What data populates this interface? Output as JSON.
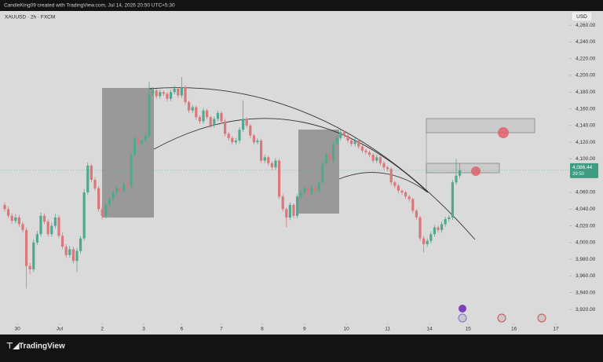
{
  "header": "CandleKing09 created with TradingView.com, Jul 14, 2026 20:50 UTC+5:30",
  "logo": "TradingView",
  "chart_data": {
    "type": "candlestick",
    "symbol": "XAUUSD · 2h · FXCM",
    "currency": "USD",
    "up_color": "#52a88f",
    "down_color": "#d9777a",
    "grid": false,
    "ylim": [
      3905,
      4277
    ],
    "yticks": [
      {
        "value": 4260,
        "label": "4,260.00"
      },
      {
        "value": 4240,
        "label": "4,240.00"
      },
      {
        "value": 4220,
        "label": "4,220.00"
      },
      {
        "value": 4200,
        "label": "4,200.00"
      },
      {
        "value": 4180,
        "label": "4,180.00"
      },
      {
        "value": 4160,
        "label": "4,160.00"
      },
      {
        "value": 4140,
        "label": "4,140.00"
      },
      {
        "value": 4120,
        "label": "4,120.00"
      },
      {
        "value": 4100,
        "label": "4,100.00"
      },
      {
        "value": 4080,
        "label": "4,080.00"
      },
      {
        "value": 4060,
        "label": "4,060.00"
      },
      {
        "value": 4040,
        "label": "4,040.00"
      },
      {
        "value": 4020,
        "label": "4,020.00"
      },
      {
        "value": 4000,
        "label": "4,000.00"
      },
      {
        "value": 3980,
        "label": "3,980.00"
      },
      {
        "value": 3960,
        "label": "3,960.00"
      },
      {
        "value": 3940,
        "label": "3,940.00"
      },
      {
        "value": 3920,
        "label": "3,920.00"
      }
    ],
    "xlim": [
      -1.3,
      156.3
    ],
    "xticks": [
      {
        "value": 3.5,
        "label": "30"
      },
      {
        "value": 15.2,
        "label": "Jul"
      },
      {
        "value": 27,
        "label": "2"
      },
      {
        "value": 38.5,
        "label": "3"
      },
      {
        "value": 49,
        "label": "6"
      },
      {
        "value": 60,
        "label": "7"
      },
      {
        "value": 71.3,
        "label": "8"
      },
      {
        "value": 83,
        "label": "9"
      },
      {
        "value": 94.6,
        "label": "10"
      },
      {
        "value": 106,
        "label": "11"
      },
      {
        "value": 117.6,
        "label": "14"
      },
      {
        "value": 128.3,
        "label": "15"
      },
      {
        "value": 141,
        "label": "16"
      },
      {
        "value": 152.6,
        "label": "17"
      }
    ],
    "last_price": {
      "value": 4086.44,
      "label": "4,086.44"
    },
    "countdown": "39:50",
    "open": [
      4045,
      4040,
      4032,
      4026,
      4030,
      4022,
      4015,
      3972,
      3968,
      4000,
      4010,
      4032,
      4025,
      4010,
      4020,
      4030,
      4008,
      3995,
      3985,
      3992,
      3978,
      3990,
      4005,
      4060,
      4092,
      4075,
      4065,
      4040,
      4032,
      4045,
      4052,
      4060,
      4065,
      4062,
      4070,
      4068,
      4105,
      4125,
      4118,
      4122,
      4128,
      4178,
      4182,
      4175,
      4180,
      4178,
      4172,
      4180,
      4184,
      4176,
      4186,
      4168,
      4158,
      4162,
      4150,
      4145,
      4158,
      4150,
      4140,
      4148,
      4155,
      4145,
      4130,
      4125,
      4120,
      4122,
      4135,
      4148,
      4140,
      4128,
      4120,
      4122,
      4098,
      4102,
      4095,
      4090,
      4098,
      4055,
      4040,
      4030,
      4045,
      4032,
      4055,
      4060,
      4065,
      4058,
      4066,
      4062,
      4072,
      4095,
      4105,
      4098,
      4118,
      4125,
      4132,
      4128,
      4122,
      4118,
      4122,
      4115,
      4110,
      4108,
      4105,
      4098,
      4102,
      4095,
      4090,
      4088,
      4072,
      4068,
      4062,
      4060,
      4055,
      4052,
      4038,
      4030,
      4005,
      3998,
      4002,
      4010,
      4018,
      4015,
      4022,
      4028,
      4030,
      4072,
      4080
    ],
    "high": [
      4048,
      4043,
      4035,
      4034,
      4033,
      4025,
      4018,
      3976,
      4004,
      4014,
      4036,
      4035,
      4028,
      4024,
      4034,
      4033,
      4012,
      3998,
      3996,
      3995,
      3994,
      4008,
      4064,
      4096,
      4094,
      4078,
      4068,
      4044,
      4048,
      4055,
      4063,
      4068,
      4067,
      4073,
      4072,
      4108,
      4128,
      4127,
      4125,
      4132,
      4192,
      4186,
      4184,
      4183,
      4182,
      4180,
      4183,
      4188,
      4186,
      4198,
      4188,
      4170,
      4165,
      4164,
      4152,
      4161,
      4160,
      4152,
      4151,
      4158,
      4157,
      4148,
      4132,
      4127,
      4125,
      4138,
      4170,
      4150,
      4142,
      4130,
      4125,
      4124,
      4105,
      4104,
      4097,
      4101,
      4100,
      4058,
      4042,
      4048,
      4047,
      4058,
      4063,
      4068,
      4067,
      4069,
      4068,
      4075,
      4098,
      4108,
      4107,
      4121,
      4128,
      4135,
      4134,
      4130,
      4124,
      4125,
      4124,
      4117,
      4112,
      4110,
      4107,
      4105,
      4104,
      4097,
      4092,
      4090,
      4074,
      4070,
      4064,
      4062,
      4057,
      4054,
      4040,
      4032,
      4008,
      4005,
      4013,
      4021,
      4020,
      4025,
      4031,
      4033,
      4075,
      4100,
      4095
    ],
    "low": [
      4037,
      4029,
      4023,
      4023,
      4019,
      4012,
      3945,
      3962,
      3965,
      3997,
      4007,
      4022,
      4007,
      4007,
      4017,
      4005,
      3992,
      3982,
      3982,
      3975,
      3965,
      3987,
      4002,
      4057,
      4072,
      4062,
      4037,
      4028,
      4029,
      4042,
      4049,
      4057,
      4059,
      4059,
      4065,
      4065,
      4102,
      4115,
      4115,
      4119,
      4125,
      4175,
      4172,
      4172,
      4175,
      4169,
      4169,
      4177,
      4173,
      4173,
      4165,
      4155,
      4155,
      4147,
      4142,
      4142,
      4147,
      4137,
      4137,
      4145,
      4142,
      4127,
      4122,
      4117,
      4117,
      4119,
      4132,
      4137,
      4125,
      4117,
      4117,
      4095,
      4095,
      4092,
      4087,
      4087,
      4052,
      4037,
      4018,
      4027,
      4029,
      4029,
      4052,
      4057,
      4055,
      4055,
      4059,
      4059,
      4069,
      4092,
      4095,
      4095,
      4115,
      4122,
      4125,
      4119,
      4115,
      4115,
      4112,
      4107,
      4105,
      4102,
      4095,
      4095,
      4092,
      4087,
      4085,
      4069,
      4065,
      4059,
      4057,
      4052,
      4049,
      4035,
      4027,
      4002,
      3988,
      3995,
      3999,
      4007,
      4012,
      4012,
      4019,
      4025,
      4027,
      4069,
      4077
    ],
    "close": [
      4040,
      4032,
      4026,
      4030,
      4022,
      4015,
      3972,
      3968,
      4000,
      4010,
      4032,
      4025,
      4010,
      4020,
      4030,
      4008,
      3995,
      3985,
      3992,
      3978,
      3990,
      4005,
      4060,
      4092,
      4075,
      4065,
      4040,
      4032,
      4045,
      4052,
      4060,
      4065,
      4062,
      4070,
      4068,
      4105,
      4125,
      4118,
      4122,
      4128,
      4178,
      4182,
      4175,
      4180,
      4178,
      4172,
      4180,
      4184,
      4176,
      4186,
      4168,
      4158,
      4162,
      4150,
      4145,
      4158,
      4150,
      4140,
      4148,
      4155,
      4145,
      4130,
      4125,
      4120,
      4122,
      4135,
      4148,
      4140,
      4128,
      4120,
      4122,
      4098,
      4102,
      4095,
      4090,
      4098,
      4055,
      4040,
      4030,
      4045,
      4032,
      4055,
      4060,
      4065,
      4058,
      4066,
      4062,
      4072,
      4095,
      4105,
      4098,
      4118,
      4125,
      4132,
      4128,
      4122,
      4118,
      4122,
      4115,
      4110,
      4108,
      4105,
      4098,
      4102,
      4095,
      4090,
      4088,
      4072,
      4068,
      4062,
      4060,
      4055,
      4052,
      4038,
      4030,
      4005,
      3998,
      4002,
      4010,
      4018,
      4015,
      4022,
      4028,
      4030,
      4072,
      4080,
      4086.44
    ]
  }
}
